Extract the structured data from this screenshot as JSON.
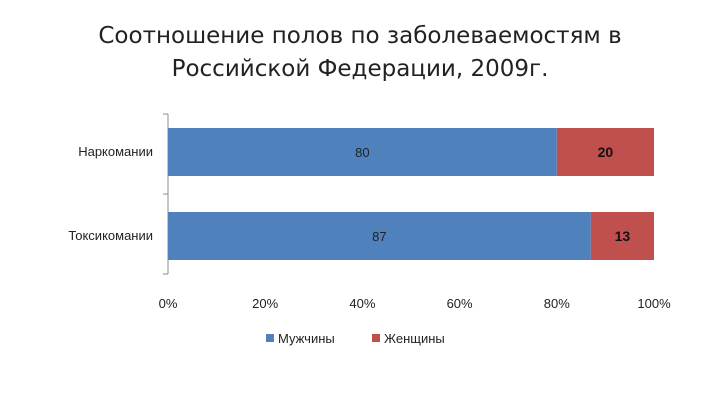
{
  "title": {
    "line1": "Соотношение полов по заболеваемостям в",
    "line2": "Российской Федерации, 2009г."
  },
  "chart_data": {
    "type": "bar",
    "orientation": "horizontal",
    "stacked": "100%",
    "categories": [
      "Наркомании",
      "Токсикомании"
    ],
    "series": [
      {
        "name": "Мужчины",
        "values": [
          80,
          87
        ],
        "color": "#4F81BD"
      },
      {
        "name": "Женщины",
        "values": [
          20,
          13
        ],
        "color": "#C0504D"
      }
    ],
    "xlim": [
      0,
      100
    ],
    "x_ticks": [
      "0%",
      "20%",
      "40%",
      "60%",
      "80%",
      "100%"
    ],
    "legend_position": "bottom",
    "grid": false
  }
}
